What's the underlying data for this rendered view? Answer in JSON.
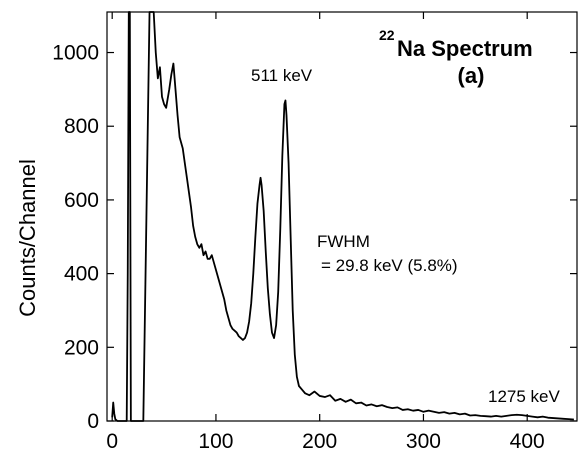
{
  "chart_data": {
    "type": "line",
    "title_superscript": "22",
    "title": "Na Spectrum",
    "subtitle": "(a)",
    "xlabel": "",
    "ylabel": "Counts/Channel",
    "xlim": [
      -5,
      448
    ],
    "ylim": [
      0,
      1110
    ],
    "x_ticks": [
      0,
      100,
      200,
      300,
      400
    ],
    "y_ticks": [
      0,
      200,
      400,
      600,
      800,
      1000
    ],
    "grid": false,
    "annotations": {
      "peak_511": "511 keV",
      "fwhm_label": "FWHM",
      "fwhm_value": "= 29.8 keV (5.8%)",
      "peak_1275": "1275 keV"
    },
    "series": [
      {
        "color": "#000000",
        "points": [
          [
            0,
            10
          ],
          [
            1,
            50
          ],
          [
            2,
            20
          ],
          [
            3,
            5
          ],
          [
            5,
            0
          ],
          [
            10,
            0
          ],
          [
            14,
            0
          ],
          [
            15,
            400
          ],
          [
            16,
            1110
          ],
          [
            17,
            1110
          ],
          [
            18,
            0
          ],
          [
            30,
            0
          ],
          [
            36,
            1110
          ],
          [
            40,
            1110
          ],
          [
            42,
            1000
          ],
          [
            44,
            930
          ],
          [
            46,
            960
          ],
          [
            48,
            880
          ],
          [
            50,
            860
          ],
          [
            52,
            850
          ],
          [
            55,
            900
          ],
          [
            57,
            940
          ],
          [
            59,
            970
          ],
          [
            61,
            900
          ],
          [
            63,
            830
          ],
          [
            65,
            770
          ],
          [
            68,
            740
          ],
          [
            70,
            700
          ],
          [
            72,
            660
          ],
          [
            74,
            620
          ],
          [
            76,
            580
          ],
          [
            78,
            530
          ],
          [
            80,
            500
          ],
          [
            82,
            480
          ],
          [
            84,
            470
          ],
          [
            86,
            480
          ],
          [
            88,
            450
          ],
          [
            90,
            460
          ],
          [
            92,
            440
          ],
          [
            94,
            440
          ],
          [
            96,
            450
          ],
          [
            98,
            430
          ],
          [
            100,
            410
          ],
          [
            102,
            390
          ],
          [
            104,
            370
          ],
          [
            106,
            350
          ],
          [
            108,
            330
          ],
          [
            110,
            300
          ],
          [
            112,
            280
          ],
          [
            114,
            260
          ],
          [
            116,
            250
          ],
          [
            118,
            245
          ],
          [
            120,
            240
          ],
          [
            122,
            230
          ],
          [
            124,
            225
          ],
          [
            126,
            220
          ],
          [
            128,
            225
          ],
          [
            130,
            240
          ],
          [
            132,
            270
          ],
          [
            134,
            320
          ],
          [
            136,
            400
          ],
          [
            138,
            500
          ],
          [
            140,
            590
          ],
          [
            142,
            640
          ],
          [
            143,
            660
          ],
          [
            144,
            640
          ],
          [
            146,
            570
          ],
          [
            148,
            460
          ],
          [
            150,
            360
          ],
          [
            152,
            290
          ],
          [
            154,
            240
          ],
          [
            156,
            225
          ],
          [
            158,
            260
          ],
          [
            160,
            350
          ],
          [
            162,
            520
          ],
          [
            164,
            720
          ],
          [
            166,
            860
          ],
          [
            167,
            870
          ],
          [
            168,
            830
          ],
          [
            170,
            700
          ],
          [
            172,
            500
          ],
          [
            174,
            300
          ],
          [
            176,
            180
          ],
          [
            178,
            120
          ],
          [
            180,
            95
          ],
          [
            183,
            85
          ],
          [
            186,
            75
          ],
          [
            190,
            70
          ],
          [
            195,
            80
          ],
          [
            200,
            68
          ],
          [
            205,
            65
          ],
          [
            210,
            70
          ],
          [
            215,
            55
          ],
          [
            220,
            60
          ],
          [
            225,
            52
          ],
          [
            230,
            58
          ],
          [
            235,
            48
          ],
          [
            240,
            50
          ],
          [
            245,
            42
          ],
          [
            250,
            45
          ],
          [
            255,
            40
          ],
          [
            260,
            43
          ],
          [
            265,
            38
          ],
          [
            270,
            35
          ],
          [
            275,
            37
          ],
          [
            280,
            30
          ],
          [
            285,
            32
          ],
          [
            290,
            28
          ],
          [
            295,
            30
          ],
          [
            300,
            25
          ],
          [
            305,
            28
          ],
          [
            310,
            25
          ],
          [
            315,
            22
          ],
          [
            320,
            24
          ],
          [
            325,
            20
          ],
          [
            330,
            22
          ],
          [
            335,
            18
          ],
          [
            340,
            20
          ],
          [
            345,
            15
          ],
          [
            350,
            16
          ],
          [
            355,
            14
          ],
          [
            360,
            13
          ],
          [
            365,
            12
          ],
          [
            370,
            14
          ],
          [
            375,
            12
          ],
          [
            380,
            14
          ],
          [
            385,
            16
          ],
          [
            390,
            17
          ],
          [
            395,
            16
          ],
          [
            400,
            14
          ],
          [
            405,
            12
          ],
          [
            410,
            10
          ],
          [
            415,
            12
          ],
          [
            420,
            9
          ],
          [
            425,
            8
          ],
          [
            430,
            7
          ],
          [
            435,
            6
          ],
          [
            440,
            5
          ],
          [
            445,
            4
          ]
        ]
      }
    ]
  }
}
